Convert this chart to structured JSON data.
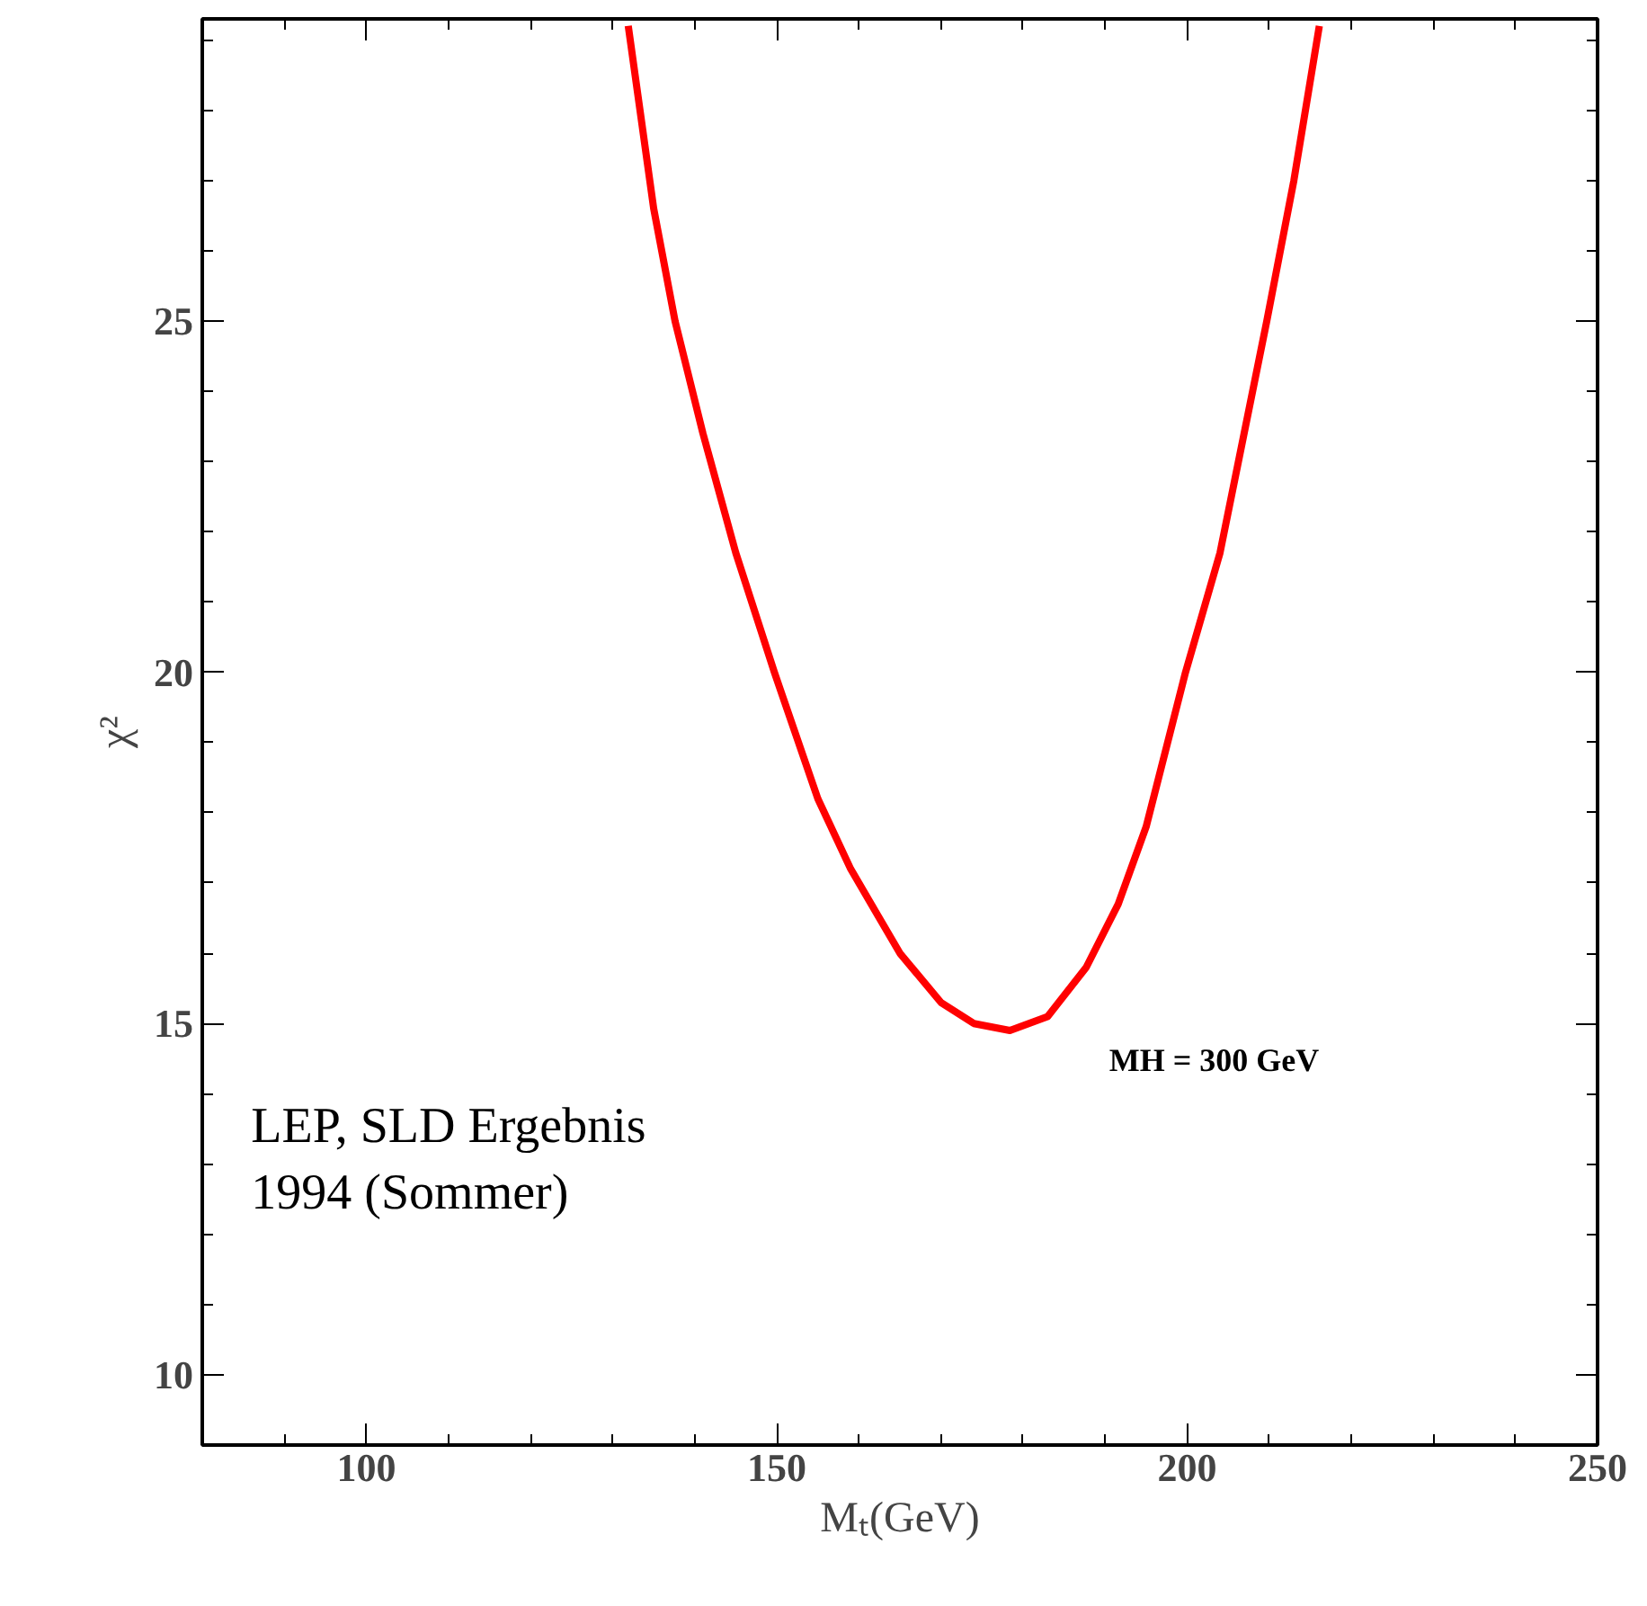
{
  "chart_data": {
    "type": "line",
    "xlabel": "Mₜ(GeV)",
    "ylabel": "χ²",
    "x": [
      131.9,
      135,
      137.6,
      141,
      145,
      149.7,
      155,
      159,
      165,
      170,
      174,
      178.4,
      183,
      187.7,
      191.6,
      195,
      199.8,
      204,
      209.7,
      213,
      216.1
    ],
    "series": [
      {
        "color": "#ff0000",
        "values": [
          29.2,
          26.6,
          25,
          23.4,
          21.7,
          20,
          18.2,
          17.2,
          16.0,
          15.3,
          15.0,
          14.9,
          15.1,
          15.8,
          16.7,
          17.8,
          20,
          21.7,
          25,
          27.0,
          29.2
        ]
      }
    ],
    "xlim": [
      80,
      250
    ],
    "ylim": [
      9,
      29.3
    ],
    "xticks": [
      100,
      150,
      200,
      250
    ],
    "yticks": [
      10,
      15,
      20,
      25
    ],
    "grid": false,
    "marker": "none",
    "line_style": "solid",
    "annotations": [
      "MH = 300 GeV",
      "LEP, SLD Ergebnis\n1994 (Sommer)"
    ]
  }
}
